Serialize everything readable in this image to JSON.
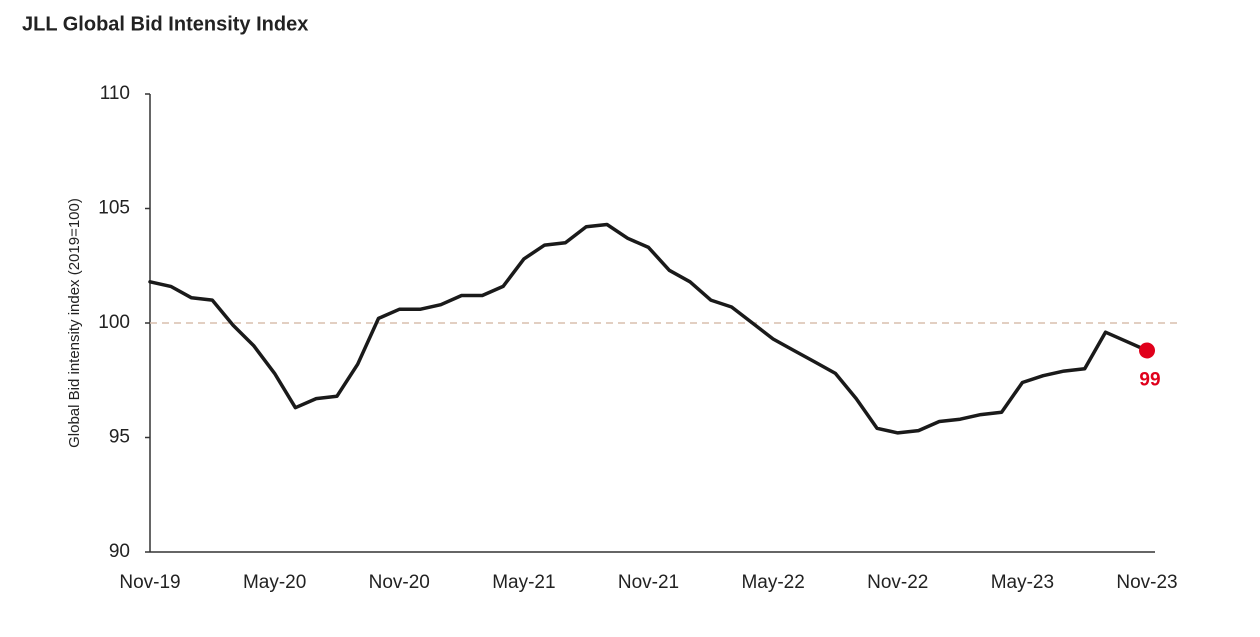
{
  "chart_data": {
    "type": "line",
    "title": "JLL Global Bid Intensity Index",
    "y_label": "Global Bid intensity index (2019=100)",
    "categories": [
      "Nov-19",
      null,
      null,
      null,
      null,
      null,
      "May-20",
      null,
      null,
      null,
      null,
      null,
      "Nov-20",
      null,
      null,
      null,
      null,
      null,
      "May-21",
      null,
      null,
      null,
      null,
      null,
      "Nov-21",
      null,
      null,
      null,
      null,
      null,
      "May-22",
      null,
      null,
      null,
      null,
      null,
      "Nov-22",
      null,
      null,
      null,
      null,
      null,
      "May-23",
      null,
      null,
      null,
      null,
      null,
      "Nov-23"
    ],
    "series": [
      {
        "color": "#1a1a1a",
        "values": [
          101.8,
          101.6,
          101.1,
          101.0,
          99.9,
          99.0,
          97.8,
          96.3,
          96.7,
          96.8,
          98.2,
          100.2,
          100.6,
          100.6,
          100.8,
          101.2,
          101.2,
          101.6,
          102.8,
          103.4,
          103.5,
          104.2,
          104.3,
          103.7,
          103.3,
          102.3,
          101.8,
          101.0,
          100.7,
          100.0,
          99.3,
          98.8,
          98.3,
          97.8,
          96.7,
          95.4,
          95.2,
          95.3,
          95.7,
          95.8,
          96.0,
          96.1,
          97.4,
          97.7,
          97.9,
          98.0,
          99.6,
          99.2,
          98.8
        ],
        "value_labels": [
          null,
          null,
          null,
          null,
          null,
          null,
          null,
          null,
          null,
          null,
          null,
          null,
          null,
          null,
          null,
          null,
          null,
          null,
          null,
          null,
          null,
          null,
          null,
          null,
          null,
          null,
          null,
          null,
          null,
          null,
          null,
          null,
          null,
          null,
          null,
          null,
          null,
          null,
          null,
          null,
          null,
          null,
          null,
          null,
          null,
          null,
          null,
          null,
          "99"
        ]
      }
    ],
    "highlight_color": "#e0001b",
    "reference_line": 100,
    "reference_color": "#d9bfae",
    "ylim": [
      90,
      110
    ],
    "yticks": [
      90,
      95,
      100,
      105,
      110
    ],
    "grid": false
  }
}
